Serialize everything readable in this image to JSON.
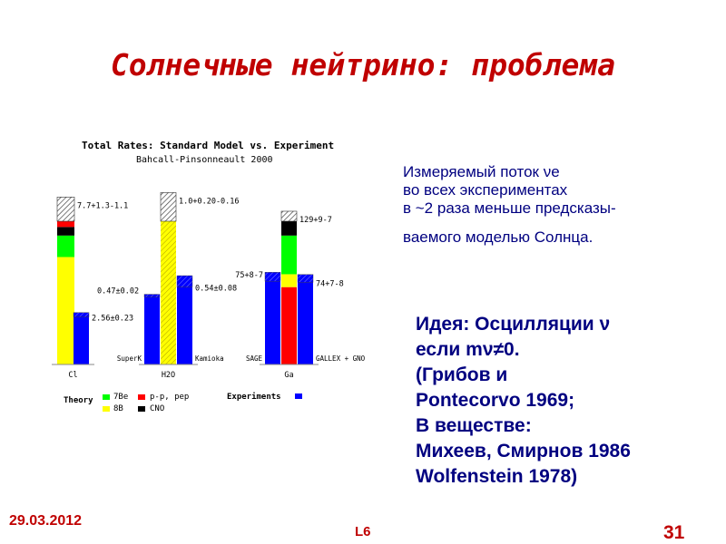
{
  "slide": {
    "title": "Солнечные нейтрино: проблема",
    "text_block_1": {
      "line1": "Измеряемый  поток νe",
      "line2": "во всех экспериментах",
      "line3": "в ~2  раза меньше  предсказы-",
      "line4": "ваемого моделью Солнца."
    },
    "text_block_2": {
      "line1": "Идея: Осцилляции ν",
      "line2": "если mν≠0.",
      "line3": "(Грибов  и",
      "line4": "Pontecorvo 1969;",
      "line5": "В веществе:",
      "line6": "Михеев, Смирнов 1986",
      "line7": "Wolfenstein 1978)"
    },
    "footer": {
      "date": "29.03.2012",
      "lecture": "L6",
      "page": "31"
    }
  },
  "chart_data": {
    "type": "bar",
    "title": "Total Rates: Standard Model vs. Experiment",
    "subtitle": "Bahcall-Pinsonneault 2000",
    "colors": {
      "pp": "#ff0000",
      "Be7": "#00ff00",
      "B8": "#ffff00",
      "CNO": "#000000",
      "experiment": "#0000ff",
      "hatch": "#555555"
    },
    "groups": [
      {
        "target": "Cl",
        "theory": {
          "label": "7.7+1.3-1.1",
          "value": 7.7,
          "unc_plus": 1.3,
          "unc_minus": 1.1,
          "components": [
            {
              "source": "B8",
              "fraction": 0.75
            },
            {
              "source": "Be7",
              "fraction": 0.15
            },
            {
              "source": "CNO",
              "fraction": 0.06
            },
            {
              "source": "pp",
              "fraction": 0.04
            }
          ]
        },
        "experiments": [
          {
            "name": "",
            "label": "2.56±0.23",
            "value": 2.56,
            "unc": 0.23
          }
        ]
      },
      {
        "target": "H2O",
        "theory": {
          "label": "1.0+0.20-0.16",
          "value": 1.0,
          "unc_plus": 0.2,
          "unc_minus": 0.16,
          "components": [
            {
              "source": "B8",
              "fraction": 1.0
            }
          ]
        },
        "experiments": [
          {
            "name": "SuperK",
            "label": "0.47±0.02",
            "value": 0.47,
            "unc": 0.02
          },
          {
            "name": "Kamioka",
            "label": "0.54±0.08",
            "value": 0.54,
            "unc": 0.08
          }
        ]
      },
      {
        "target": "Ga",
        "theory": {
          "label": "129+9-7",
          "value": 129,
          "unc_plus": 9,
          "unc_minus": 7,
          "components": [
            {
              "source": "pp",
              "fraction": 0.54
            },
            {
              "source": "B8",
              "fraction": 0.09
            },
            {
              "source": "Be7",
              "fraction": 0.27
            },
            {
              "source": "CNO",
              "fraction": 0.1
            }
          ]
        },
        "experiments": [
          {
            "name": "SAGE",
            "label": "75+8-7",
            "value": 75,
            "unc_plus": 8,
            "unc_minus": 7
          },
          {
            "name": "GALLEX + GNO",
            "label": "74+7-8",
            "value": 74,
            "unc_plus": 7,
            "unc_minus": 8
          }
        ]
      }
    ],
    "legend": {
      "theory_label": "Theory",
      "experiments_label": "Experiments",
      "entries": [
        {
          "source": "Be7",
          "label": "7Be"
        },
        {
          "source": "pp",
          "label": "p-p, pep"
        },
        {
          "source": "B8",
          "label": "8B"
        },
        {
          "source": "CNO",
          "label": "CNO"
        }
      ]
    }
  }
}
